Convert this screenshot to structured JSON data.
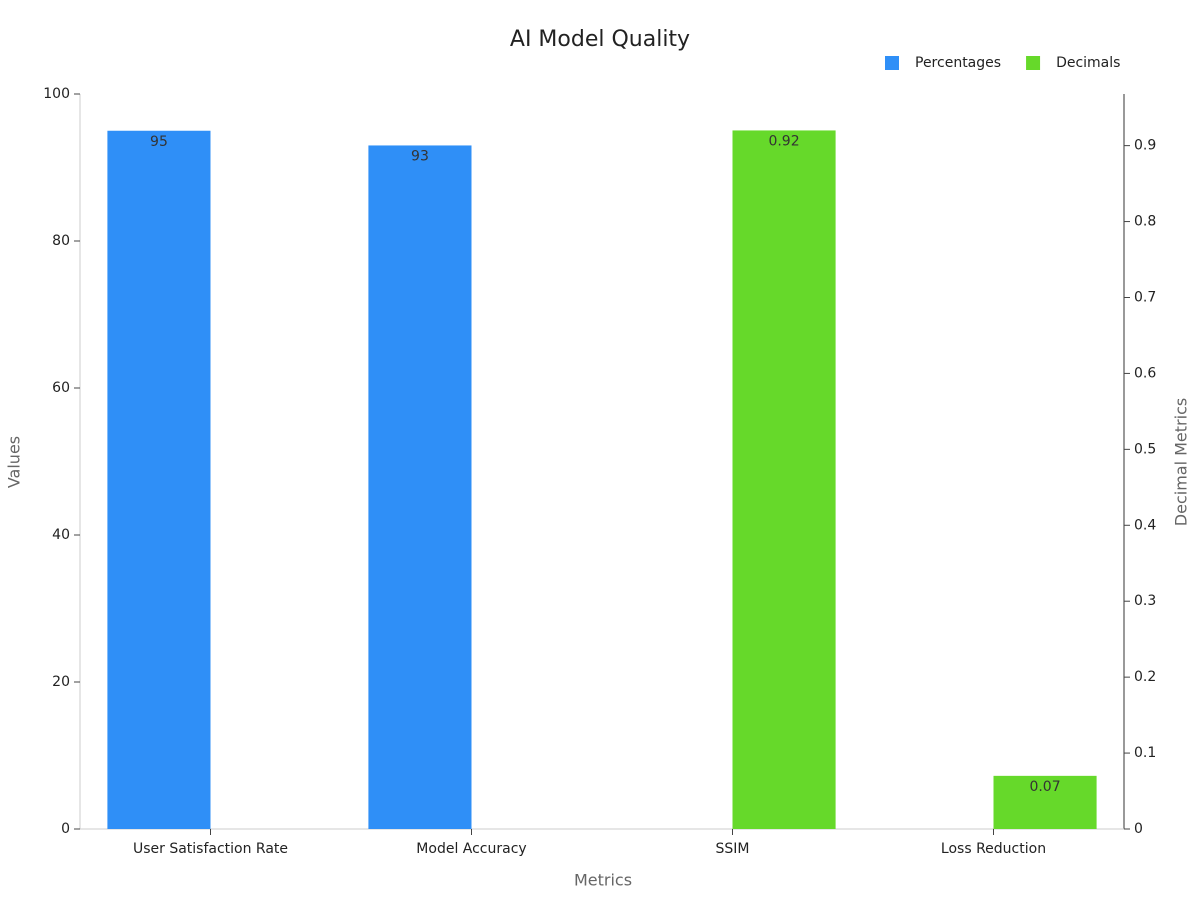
{
  "chart_data": {
    "type": "bar",
    "title": "AI Model Quality",
    "x_label": "Metrics",
    "y_label": "Values",
    "y2_label": "Decimal Metrics",
    "categories": [
      "User Satisfaction Rate",
      "Model Accuracy",
      "SSIM",
      "Loss Reduction"
    ],
    "series": [
      {
        "name": "Percentages",
        "color": "#2f8ff7",
        "values": [
          95,
          93,
          null,
          null
        ]
      },
      {
        "name": "Decimals",
        "color": "#66d92a",
        "axis": "y2",
        "values": [
          null,
          null,
          0.92,
          0.07
        ]
      }
    ],
    "ylim": [
      0,
      100
    ],
    "yticks": [
      0,
      20,
      40,
      60,
      80,
      100
    ],
    "y2lim": [
      0,
      0.968
    ],
    "y2ticks": [
      0,
      0.1,
      0.2,
      0.3,
      0.4,
      0.5,
      0.6,
      0.7,
      0.8,
      0.9
    ],
    "legend": "top-right"
  }
}
